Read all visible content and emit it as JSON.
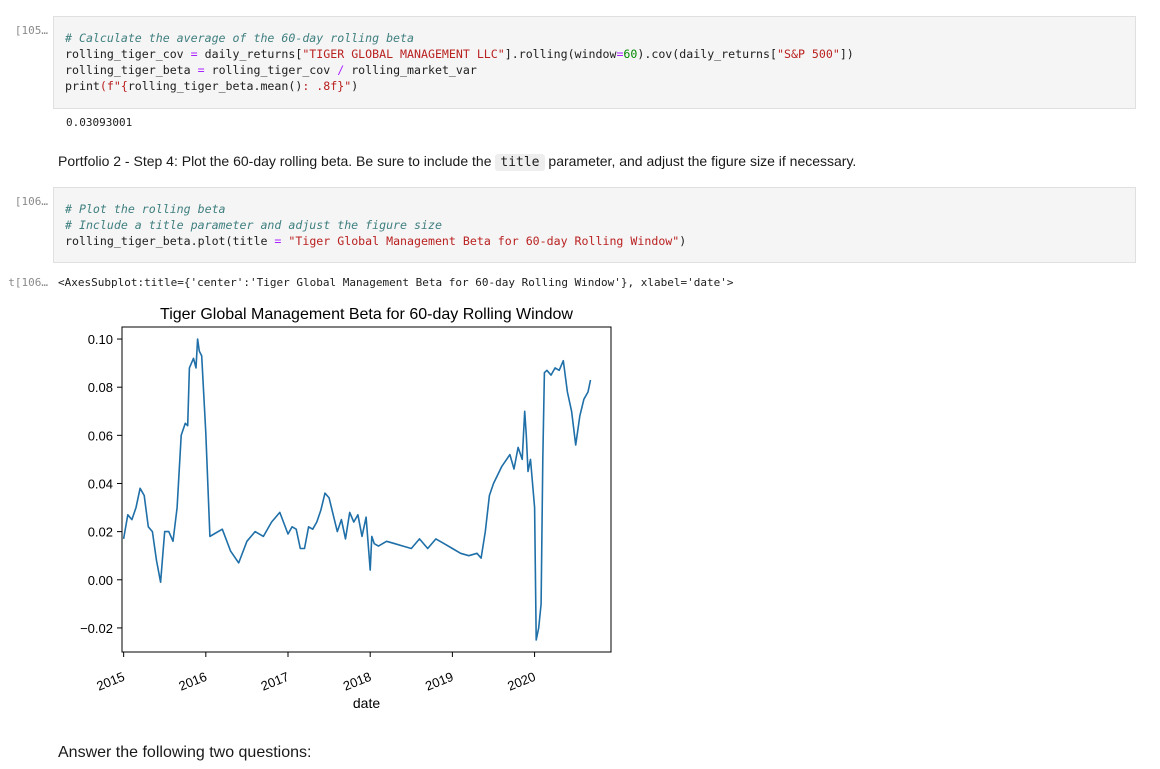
{
  "cells": [
    {
      "prompt": "[105…",
      "code_lines": [
        [
          {
            "t": "# Calculate the average of the 60-day rolling beta",
            "c": "cm"
          }
        ],
        [
          {
            "t": "rolling_tiger_cov ",
            "c": ""
          },
          {
            "t": "=",
            "c": "op"
          },
          {
            "t": " daily_returns[",
            "c": ""
          },
          {
            "t": "\"TIGER GLOBAL MANAGEMENT LLC\"",
            "c": "str"
          },
          {
            "t": "].rolling(window",
            "c": ""
          },
          {
            "t": "=",
            "c": "op"
          },
          {
            "t": "60",
            "c": "num"
          },
          {
            "t": ").cov(daily_returns[",
            "c": ""
          },
          {
            "t": "\"S&P 500\"",
            "c": "str"
          },
          {
            "t": "])",
            "c": ""
          }
        ],
        [
          {
            "t": "rolling_tiger_beta ",
            "c": ""
          },
          {
            "t": "=",
            "c": "op"
          },
          {
            "t": " rolling_tiger_cov ",
            "c": ""
          },
          {
            "t": "/",
            "c": "op"
          },
          {
            "t": " rolling_market_var",
            "c": ""
          }
        ],
        [
          {
            "t": "print",
            "c": ""
          },
          {
            "t": "(f\"{",
            "c": "str"
          },
          {
            "t": "rolling_tiger_beta.mean()",
            "c": ""
          },
          {
            "t": ": .8f}\"",
            "c": "str"
          },
          {
            "t": ")",
            "c": ""
          }
        ]
      ],
      "output": "0.03093001"
    },
    {
      "markdown_before": "Portfolio 2 - Step 4: Plot the 60-day rolling beta. Be sure to include the",
      "markdown_code": "title",
      "markdown_after": "parameter, and adjust the figure size if necessary."
    },
    {
      "prompt": "[106…",
      "code_lines": [
        [
          {
            "t": "# Plot the rolling beta",
            "c": "cm"
          }
        ],
        [
          {
            "t": "# Include a title parameter and adjust the figure size",
            "c": "cm"
          }
        ],
        [
          {
            "t": "rolling_tiger_beta.plot(title ",
            "c": ""
          },
          {
            "t": "=",
            "c": "op"
          },
          {
            "t": " ",
            "c": ""
          },
          {
            "t": "\"Tiger Global Management Beta for 60-day Rolling Window\"",
            "c": "str"
          },
          {
            "t": ")",
            "c": ""
          }
        ]
      ],
      "out_prompt": "t[106…",
      "output": "<AxesSubplot:title={'center':'Tiger Global Management Beta for 60-day Rolling Window'}, xlabel='date'>"
    }
  ],
  "answer_heading": "Answer the following two questions:",
  "chart_data": {
    "type": "line",
    "title": "Tiger Global Management Beta for 60-day Rolling Window",
    "xlabel": "date",
    "ylabel": "",
    "xlim": [
      2014.98,
      2020.93
    ],
    "ylim": [
      -0.03,
      0.105
    ],
    "yticks": [
      -0.02,
      0.0,
      0.02,
      0.04,
      0.06,
      0.08,
      0.1
    ],
    "ytick_labels": [
      "−0.02",
      "0.00",
      "0.02",
      "0.04",
      "0.06",
      "0.08",
      "0.10"
    ],
    "xticks": [
      2015,
      2016,
      2017,
      2018,
      2019,
      2020
    ],
    "xtick_labels": [
      "2015",
      "2016",
      "2017",
      "2018",
      "2019",
      "2020"
    ],
    "line_color": "#1f6fa8",
    "series": [
      {
        "x": [
          2015.0,
          2015.05,
          2015.1,
          2015.15,
          2015.2,
          2015.25,
          2015.3,
          2015.35,
          2015.4,
          2015.45,
          2015.48,
          2015.5,
          2015.55,
          2015.6,
          2015.65,
          2015.7,
          2015.75,
          2015.78,
          2015.8,
          2015.85,
          2015.88,
          2015.9,
          2015.92,
          2015.95,
          2016.0,
          2016.05,
          2016.1,
          2016.2,
          2016.3,
          2016.4,
          2016.5,
          2016.6,
          2016.7,
          2016.8,
          2016.9,
          2017.0,
          2017.05,
          2017.1,
          2017.15,
          2017.2,
          2017.25,
          2017.3,
          2017.35,
          2017.4,
          2017.45,
          2017.5,
          2017.55,
          2017.6,
          2017.65,
          2017.7,
          2017.75,
          2017.8,
          2017.85,
          2017.9,
          2017.95,
          2018.0,
          2018.02,
          2018.05,
          2018.1,
          2018.2,
          2018.3,
          2018.4,
          2018.5,
          2018.6,
          2018.7,
          2018.8,
          2018.9,
          2019.0,
          2019.1,
          2019.2,
          2019.3,
          2019.35,
          2019.4,
          2019.45,
          2019.5,
          2019.6,
          2019.7,
          2019.75,
          2019.8,
          2019.85,
          2019.88,
          2019.9,
          2019.92,
          2019.95,
          2020.0,
          2020.02,
          2020.05,
          2020.08,
          2020.1,
          2020.12,
          2020.15,
          2020.2,
          2020.25,
          2020.3,
          2020.35,
          2020.4,
          2020.45,
          2020.5,
          2020.55,
          2020.6,
          2020.65,
          2020.68
        ],
        "y": [
          0.017,
          0.027,
          0.025,
          0.03,
          0.038,
          0.035,
          0.022,
          0.02,
          0.008,
          -0.001,
          0.012,
          0.02,
          0.02,
          0.016,
          0.03,
          0.06,
          0.065,
          0.064,
          0.088,
          0.092,
          0.088,
          0.1,
          0.095,
          0.093,
          0.061,
          0.018,
          0.019,
          0.021,
          0.012,
          0.007,
          0.016,
          0.02,
          0.018,
          0.024,
          0.028,
          0.019,
          0.022,
          0.021,
          0.013,
          0.013,
          0.022,
          0.021,
          0.024,
          0.029,
          0.036,
          0.034,
          0.027,
          0.02,
          0.025,
          0.017,
          0.028,
          0.024,
          0.027,
          0.018,
          0.026,
          0.004,
          0.018,
          0.015,
          0.014,
          0.016,
          0.015,
          0.014,
          0.013,
          0.017,
          0.013,
          0.017,
          0.015,
          0.013,
          0.011,
          0.01,
          0.011,
          0.009,
          0.02,
          0.035,
          0.04,
          0.047,
          0.052,
          0.046,
          0.055,
          0.05,
          0.07,
          0.06,
          0.045,
          0.05,
          0.03,
          -0.025,
          -0.02,
          -0.01,
          0.05,
          0.086,
          0.087,
          0.085,
          0.088,
          0.087,
          0.091,
          0.078,
          0.07,
          0.056,
          0.068,
          0.075,
          0.078,
          0.083
        ]
      }
    ]
  }
}
